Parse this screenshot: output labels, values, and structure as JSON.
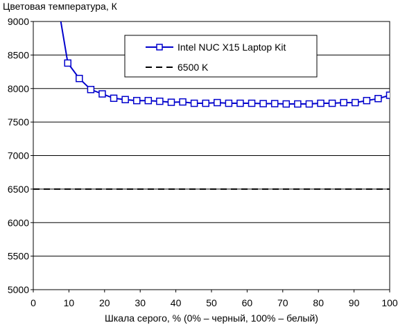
{
  "chart_data": {
    "type": "line",
    "ylabel": "Цветовая температура, К",
    "xlabel": "Шкала серого, % (0% – черный, 100% – белый)",
    "xlim": [
      0,
      100
    ],
    "ylim": [
      5000,
      9000
    ],
    "xticks": [
      0,
      10,
      20,
      30,
      40,
      50,
      60,
      70,
      80,
      90,
      100
    ],
    "yticks": [
      5000,
      5500,
      6000,
      6500,
      7000,
      7500,
      8000,
      8500,
      9000
    ],
    "grid": "horizontal",
    "legend": "top-right",
    "series": [
      {
        "name": "Intel NUC X15 Laptop Kit",
        "style": "solid-square-markers",
        "color": "#0000cc",
        "x": [
          6.45,
          9.68,
          12.9,
          16.13,
          19.35,
          22.58,
          25.81,
          29.03,
          32.26,
          35.48,
          38.71,
          41.94,
          45.16,
          48.39,
          51.61,
          54.84,
          58.06,
          61.29,
          64.52,
          67.74,
          70.97,
          74.19,
          77.42,
          80.65,
          83.87,
          87.1,
          90.32,
          93.55,
          96.77,
          100
        ],
        "y": [
          9400,
          8380,
          8150,
          7985,
          7920,
          7855,
          7835,
          7820,
          7820,
          7810,
          7795,
          7800,
          7780,
          7780,
          7790,
          7780,
          7780,
          7780,
          7775,
          7775,
          7770,
          7770,
          7770,
          7780,
          7780,
          7790,
          7790,
          7820,
          7850,
          7900
        ]
      },
      {
        "name": "6500 K",
        "style": "dashed",
        "color": "#000000",
        "x": [
          0,
          100
        ],
        "y": [
          6500,
          6500
        ]
      }
    ]
  }
}
